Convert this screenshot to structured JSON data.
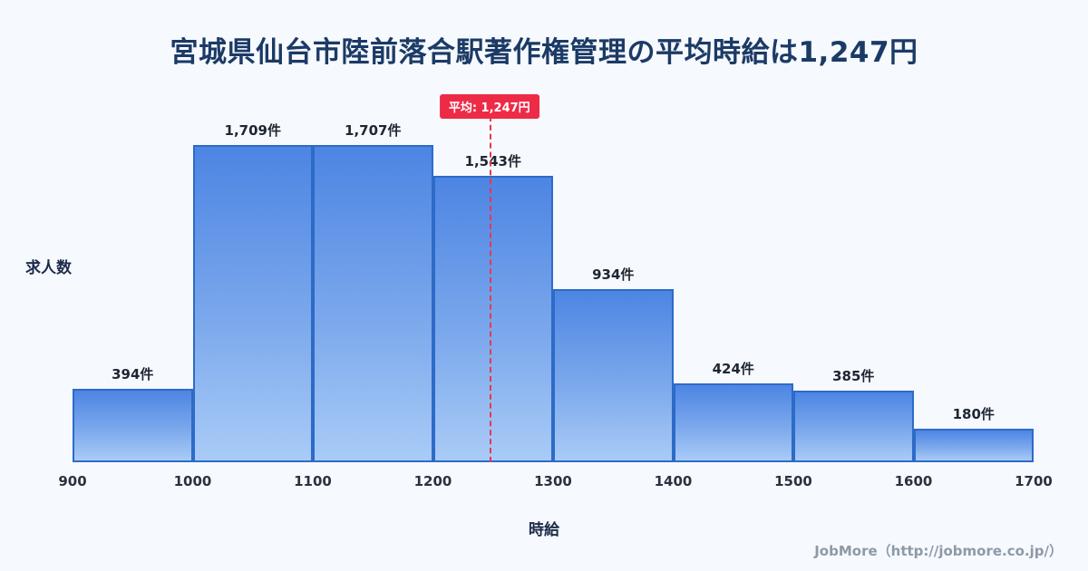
{
  "page": {
    "title": "宮城県仙台市陸前落合駅著作権管理の平均時給は1,247円",
    "footer": "JobMore（http://jobmore.co.jp/）"
  },
  "chart_data": {
    "type": "bar",
    "title": "宮城県仙台市陸前落合駅著作権管理の平均時給は1,247円",
    "xlabel": "時給",
    "ylabel": "求人数",
    "x_min": 900,
    "x_max": 1700,
    "x_ticks": [
      900,
      1000,
      1100,
      1200,
      1300,
      1400,
      1500,
      1600,
      1700
    ],
    "bin_width": 100,
    "values": [
      394,
      1709,
      1707,
      1543,
      934,
      424,
      385,
      180
    ],
    "labels": [
      "394件",
      "1,709件",
      "1,707件",
      "1,543件",
      "934件",
      "424件",
      "385件",
      "180件"
    ],
    "average": 1247,
    "average_label": "平均: 1,247円",
    "legend": "none",
    "grid": false,
    "colors": {
      "bar_top": "#4d85e3",
      "bar_bottom": "#a9cbf6",
      "bar_border": "#2d6bc8",
      "average_line": "#e8374e",
      "badge_bg": "#ee2b47",
      "title_text": "#1b3a66",
      "background": "#f6f9fd"
    }
  }
}
